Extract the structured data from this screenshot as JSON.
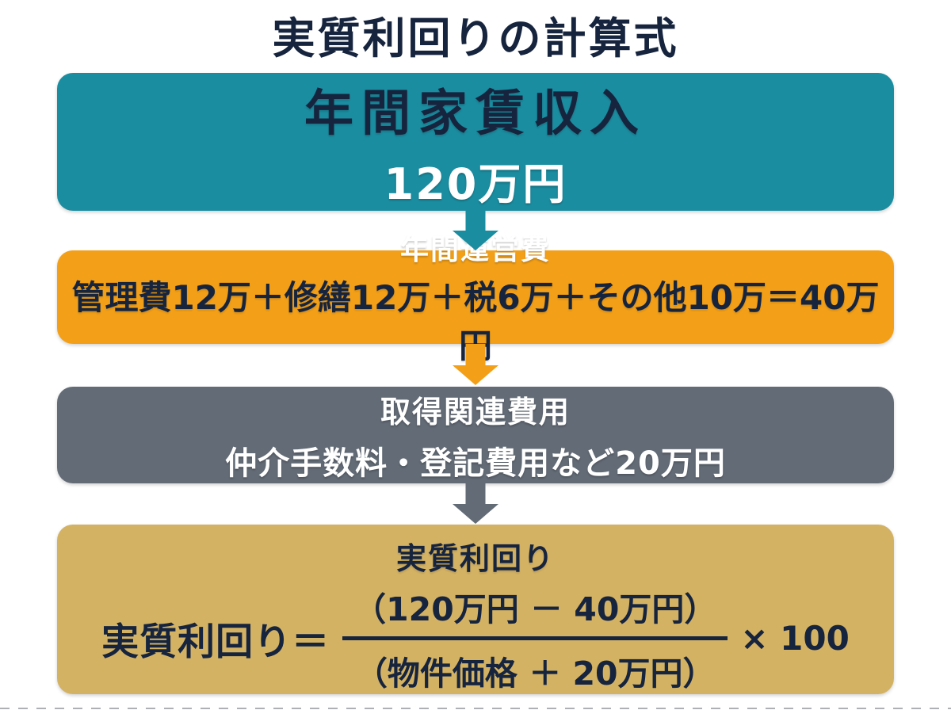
{
  "page": {
    "title": "実質利回りの計算式"
  },
  "colors": {
    "navy": "#16243e",
    "teal": "#1b8da0",
    "orange": "#f3a018",
    "gray": "#636b76",
    "tan": "#d3b264",
    "white": "#ffffff",
    "background": "#ffffff"
  },
  "flow": {
    "boxes": [
      {
        "name": "annual-rent-income",
        "title": "年間家賃収入",
        "value": "120万円"
      },
      {
        "name": "annual-operating-costs",
        "title": "年間運営費",
        "detail": "管理費12万＋修繕12万＋税6万＋その他10万＝40万円"
      },
      {
        "name": "acquisition-costs",
        "title": "取得関連費用",
        "detail": "仲介手数料・登記費用など20万円"
      },
      {
        "name": "net-yield",
        "title": "実質利回り"
      }
    ],
    "arrows": [
      {
        "from": "annual-rent-income",
        "to": "annual-operating-costs",
        "color": "#1b8da0"
      },
      {
        "from": "annual-operating-costs",
        "to": "acquisition-costs",
        "color": "#f3a018"
      },
      {
        "from": "acquisition-costs",
        "to": "net-yield",
        "color": "#636b76"
      }
    ]
  },
  "formula": {
    "lhs": "実質利回り＝",
    "numerator": "（120万円 － 40万円）",
    "denominator": "（物件価格 ＋ 20万円）",
    "multiplier": "× 100"
  }
}
